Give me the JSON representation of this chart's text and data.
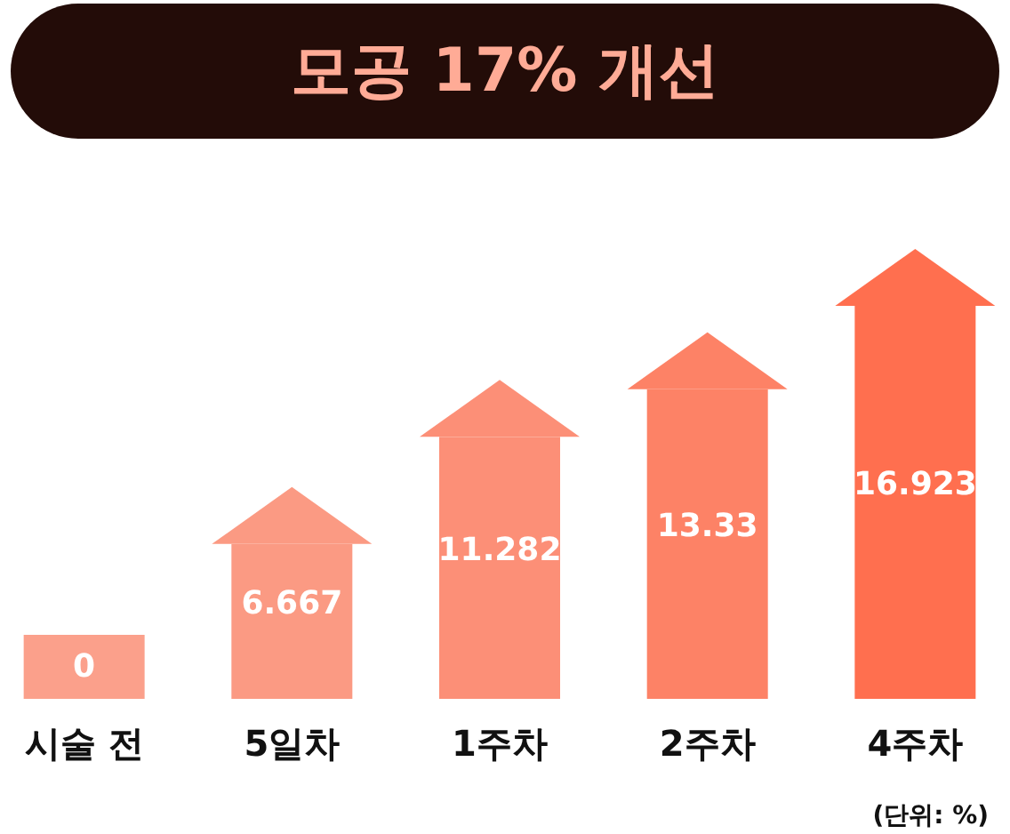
{
  "chart_data": {
    "type": "bar",
    "title": "모공 17% 개선",
    "categories": [
      "시술 전",
      "5일차",
      "1주차",
      "2주차",
      "4주차"
    ],
    "values": [
      0,
      6.667,
      11.282,
      13.33,
      16.923
    ],
    "colors": [
      "#fba08b",
      "#fb9a83",
      "#fc8f77",
      "#fd8266",
      "#ff6f4f"
    ],
    "data_labels": true,
    "annotations": [
      "(단위: %)"
    ]
  }
}
